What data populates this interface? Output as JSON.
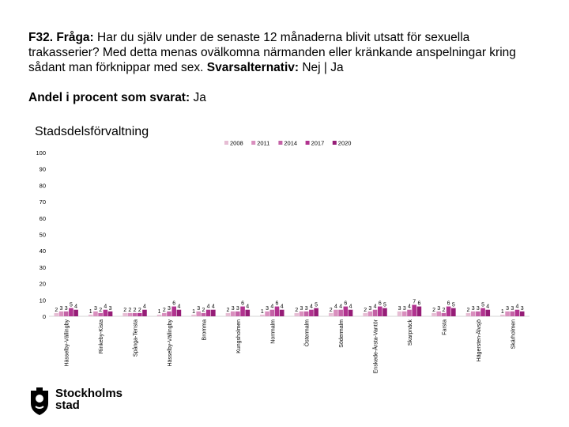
{
  "question": {
    "prefix": "F32. Fråga:",
    "text": " Har du själv under de senaste 12 månaderna blivit utsatt för sexuella trakasserier? Med detta menas ovälkomna närmanden eller kränkande anspelningar kring sådant man förknippar med sex. ",
    "alt_label": "Svarsalternativ:",
    "alt_text": " Nej | Ja"
  },
  "subhead": {
    "label": "Andel i procent som svarat:",
    "value": " Ja"
  },
  "logo": {
    "line1": "Stockholms",
    "line2": "stad"
  },
  "chart_data": {
    "type": "bar",
    "title": "Stadsdelsförvaltning",
    "xlabel": "",
    "ylabel": "",
    "ylim": [
      0,
      100
    ],
    "yticks": [
      0,
      10,
      20,
      30,
      40,
      50,
      60,
      70,
      80,
      90,
      100
    ],
    "legend_position": "top-right",
    "categories": [
      "Hässelby-Vällingby",
      "Rinkeby-Kista",
      "Spånga-Tensta",
      "Hässelby-Vällingby",
      "Bromma",
      "Kungsholmen",
      "Norrmalm",
      "Östermalm",
      "Södermalm",
      "Enskede-Årsta-Vantör",
      "Skarpnäck",
      "Farsta",
      "Hägersten-Älvsjö",
      "Skärholmen"
    ],
    "series": [
      {
        "name": "2008",
        "color": "#e6bdd4",
        "values": [
          2,
          1,
          2,
          1,
          1,
          2,
          1,
          2,
          2,
          2,
          3,
          2,
          2,
          1
        ]
      },
      {
        "name": "2011",
        "color": "#d98fbe",
        "values": [
          3,
          3,
          2,
          2,
          3,
          3,
          3,
          3,
          4,
          3,
          3,
          3,
          3,
          3
        ]
      },
      {
        "name": "2014",
        "color": "#c462a6",
        "values": [
          3,
          2,
          2,
          3,
          2,
          3,
          4,
          3,
          4,
          4,
          4,
          2,
          3,
          3
        ]
      },
      {
        "name": "2017",
        "color": "#b1338f",
        "values": [
          5,
          4,
          2,
          6,
          4,
          6,
          6,
          4,
          6,
          6,
          7,
          6,
          5,
          4
        ]
      },
      {
        "name": "2020",
        "color": "#961d77",
        "values": [
          4,
          3,
          4,
          4,
          4,
          4,
          4,
          5,
          4,
          5,
          6,
          5,
          4,
          3
        ]
      }
    ]
  }
}
